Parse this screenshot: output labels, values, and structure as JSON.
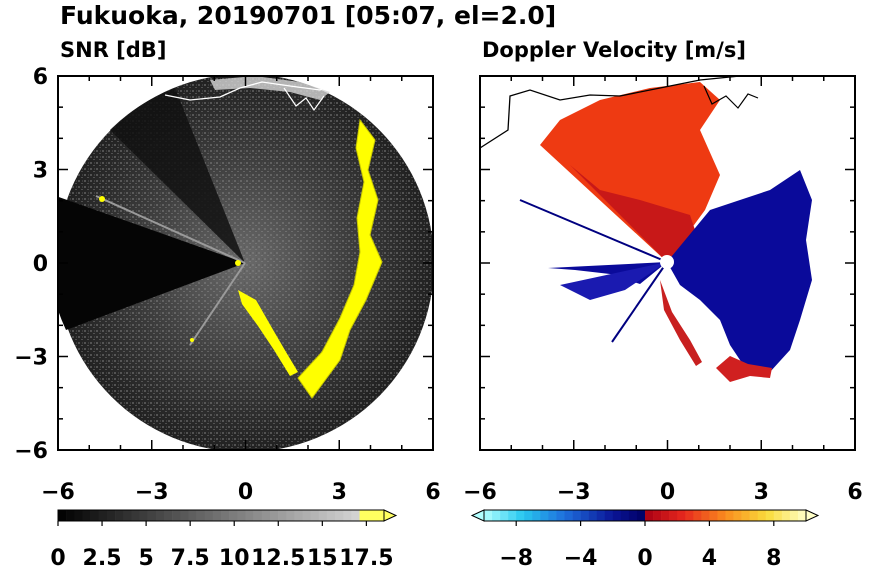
{
  "title": "Fukuoka, 20190701 [05:07, el=2.0]",
  "colors": {
    "background": "#000000",
    "snr_echo": "#ffff00",
    "coast": "#ffffff",
    "approaching": "#0000a8",
    "receding": "#ee3a12"
  },
  "chart_data": [
    {
      "type": "heatmap",
      "title": "SNR [dB]",
      "xlabel": "",
      "ylabel": "",
      "xlim": [
        -6,
        6
      ],
      "ylim": [
        -6,
        6
      ],
      "x_ticks": [
        "−6",
        "−3",
        "0",
        "3",
        "6"
      ],
      "y_ticks": [
        "6",
        "3",
        "0",
        "−3",
        "−6"
      ],
      "grid": false,
      "range_ring_max": 6,
      "colorbar": {
        "orientation": "horizontal",
        "min": 0,
        "max": 18.5,
        "extend": "max",
        "tick_labels": [
          "0",
          "2.5",
          "5",
          "7.5",
          "10",
          "12.5",
          "15",
          "17.5"
        ],
        "colormap": "gray-to-yellow"
      }
    },
    {
      "type": "heatmap",
      "title": "Doppler Velocity [m/s]",
      "xlabel": "",
      "ylabel": "",
      "xlim": [
        -6,
        6
      ],
      "ylim": [
        -6,
        6
      ],
      "x_ticks": [
        "−6",
        "−3",
        "0",
        "3",
        "6"
      ],
      "y_ticks": [],
      "grid": false,
      "colorbar": {
        "orientation": "horizontal",
        "min": -10,
        "max": 10,
        "extend": "both",
        "tick_labels": [
          "−8",
          "−4",
          "0",
          "4",
          "8"
        ],
        "colormap": "cyan-blue-red-yellow"
      }
    }
  ]
}
